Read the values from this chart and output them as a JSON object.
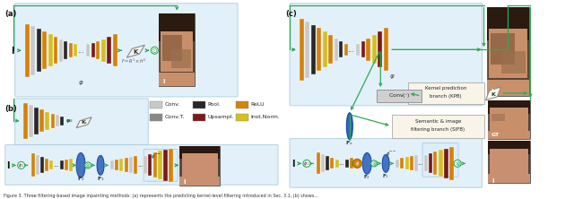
{
  "green": "#2daa55",
  "gold": "#d4820a",
  "inst_norm_yellow": "#d4c020",
  "gray_light": "#c8c8c8",
  "gray_pool": "#282828",
  "gray_convt": "#888888",
  "maroon": "#7a1a1a",
  "panel_bg": "#ddeef8",
  "panel_border": "#aaccdd",
  "white": "#ffffff",
  "black": "#111111",
  "blue_filter": "#3366bb",
  "caption": "Figure 3. Three filtering-based image inpainting methods: (a) represents the predicting kernel-level filtering introduced in Sec. 3.1, (b) shows...",
  "legend": [
    {
      "label": "Conv.",
      "color": "#c8c8c8"
    },
    {
      "label": "Pool.",
      "color": "#282828"
    },
    {
      "label": "ReLU",
      "color": "#d4820a"
    },
    {
      "label": "Conv.T.",
      "color": "#888888"
    },
    {
      "label": "Upsampl.",
      "color": "#7a1a1a"
    },
    {
      "label": "Inst.Norm.",
      "color": "#d4c020"
    }
  ]
}
